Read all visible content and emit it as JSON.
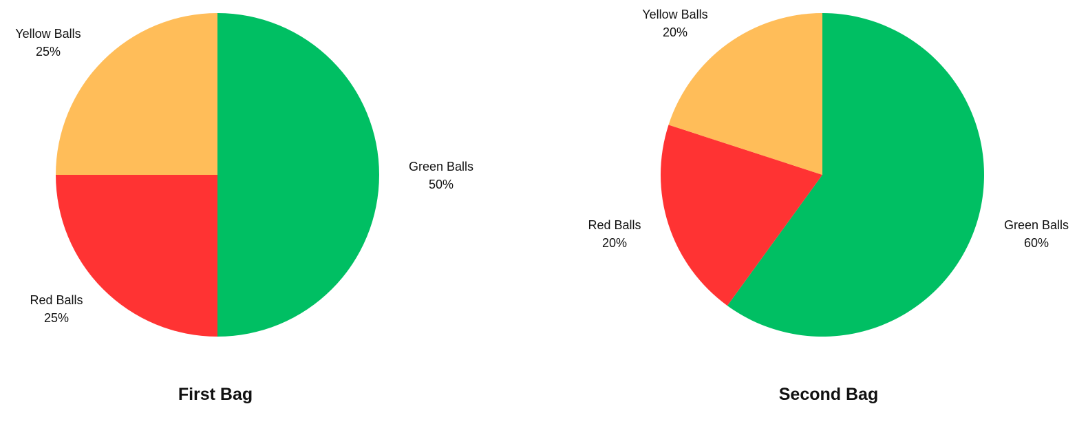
{
  "chart_data": [
    {
      "type": "pie",
      "title": "First Bag",
      "slices": [
        {
          "label": "Green Balls",
          "value": 50,
          "percent_text": "50%",
          "color": "#00BF63"
        },
        {
          "label": "Red Balls",
          "value": 25,
          "percent_text": "25%",
          "color": "#FF3333"
        },
        {
          "label": "Yellow Balls",
          "value": 25,
          "percent_text": "25%",
          "color": "#FFBD59"
        }
      ],
      "start_angle_deg": 0,
      "direction": "clockwise",
      "legend": "none"
    },
    {
      "type": "pie",
      "title": "Second Bag",
      "slices": [
        {
          "label": "Green Balls",
          "value": 60,
          "percent_text": "60%",
          "color": "#00BF63"
        },
        {
          "label": "Red Balls",
          "value": 20,
          "percent_text": "20%",
          "color": "#FF3333"
        },
        {
          "label": "Yellow Balls",
          "value": 20,
          "percent_text": "20%",
          "color": "#FFBD59"
        }
      ],
      "start_angle_deg": 0,
      "direction": "clockwise",
      "legend": "none"
    }
  ]
}
